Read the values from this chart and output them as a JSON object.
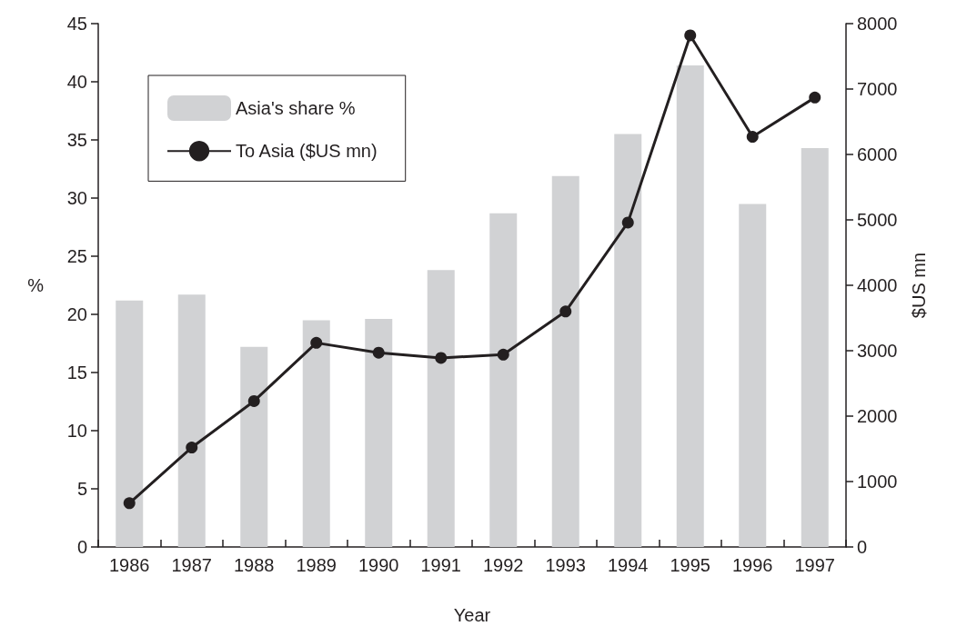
{
  "chart_data": {
    "type": "bar",
    "xlabel": "Year",
    "ylabel": "%",
    "y2label": "$US mn",
    "categories": [
      "1986",
      "1987",
      "1988",
      "1989",
      "1990",
      "1991",
      "1992",
      "1993",
      "1994",
      "1995",
      "1996",
      "1997"
    ],
    "series": [
      {
        "name": "Asia's share %",
        "color": "#d1d2d4",
        "values": [
          21.2,
          21.7,
          17.2,
          19.5,
          19.6,
          23.8,
          28.7,
          31.9,
          35.5,
          41.4,
          29.5,
          34.3
        ]
      },
      {
        "name": "To Asia ($US mn)",
        "type": "line",
        "axis": "y2",
        "color": "#231f20",
        "marker": "circle",
        "values": [
          670,
          1520,
          2230,
          3120,
          2970,
          2890,
          2940,
          3600,
          4960,
          7820,
          6270,
          6870
        ]
      }
    ],
    "ylim": [
      0,
      45
    ],
    "yticks": [
      0,
      5,
      10,
      15,
      20,
      25,
      30,
      35,
      40,
      45
    ],
    "y2lim": [
      0,
      8000
    ],
    "y2ticks": [
      0,
      1000,
      2000,
      3000,
      4000,
      5000,
      6000,
      7000,
      8000
    ],
    "grid": false,
    "legend": "top left"
  }
}
